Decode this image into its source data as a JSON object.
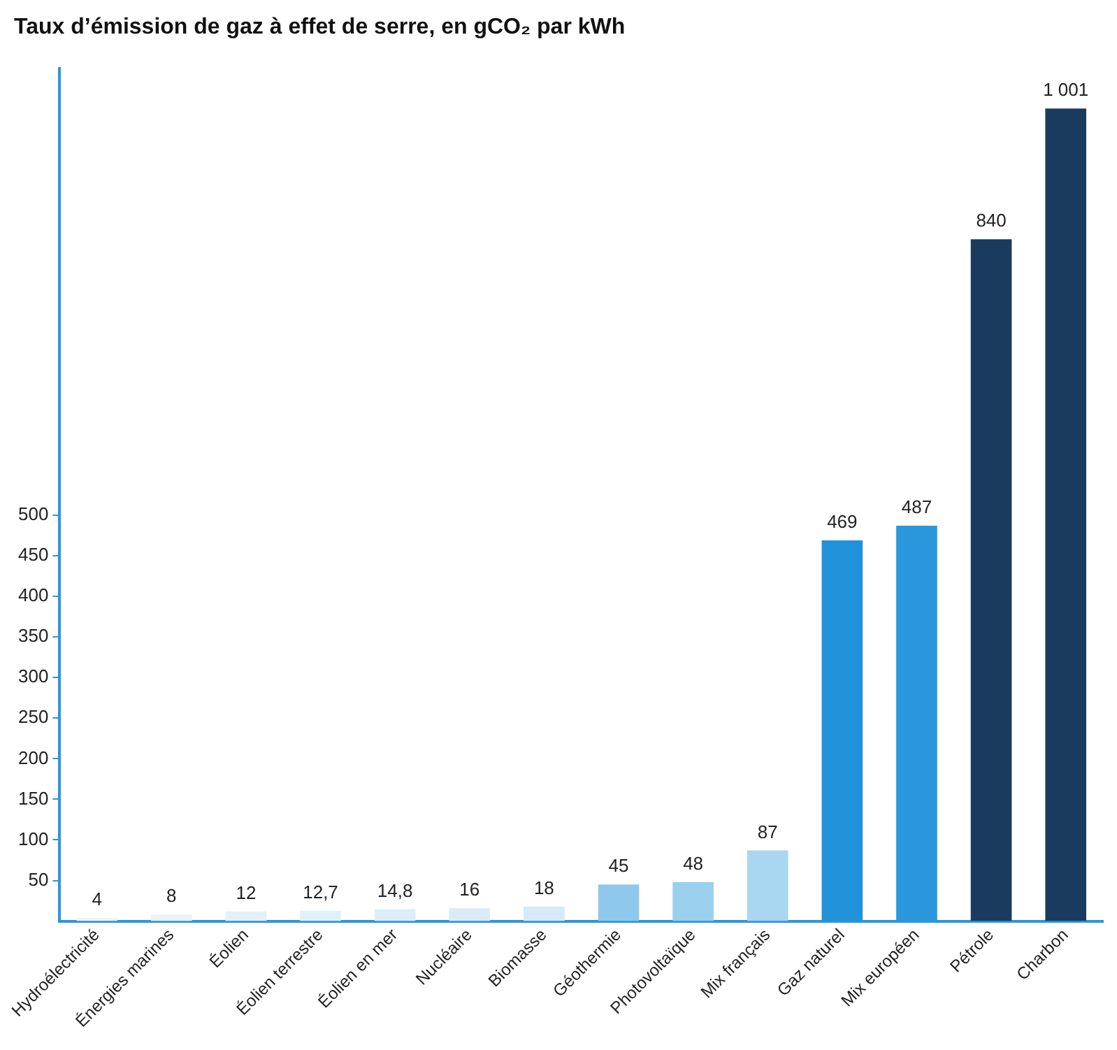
{
  "chart_data": {
    "type": "bar",
    "title": "Taux d’émission de gaz à effet de serre, en gCO₂ par kWh",
    "categories": [
      "Hydroélectricité",
      "Énergies marines",
      "Éolien",
      "Éolien terrestre",
      "Éolien en mer",
      "Nucléaire",
      "Biomasse",
      "Géothermie",
      "Photovoltaïque",
      "Mix français",
      "Gaz naturel",
      "Mix européen",
      "Pétrole",
      "Charbon"
    ],
    "values": [
      4,
      8,
      12,
      12.7,
      14.8,
      16,
      18,
      45,
      48,
      87,
      469,
      487,
      840,
      1001
    ],
    "colors": [
      "#eef6fc",
      "#eaf4fb",
      "#e4f1fa",
      "#e2f0fa",
      "#deeef9",
      "#dbecf8",
      "#d6eaf8",
      "#8ec9ec",
      "#9acfee",
      "#a9d6f0",
      "#1f92da",
      "#2a97dc",
      "#1b3b5e",
      "#1b3b5e"
    ],
    "value_labels": [
      "4",
      "8",
      "12",
      "12,7",
      "14,8",
      "16",
      "18",
      "45",
      "48",
      "87",
      "469",
      "487",
      "840",
      "1 001"
    ],
    "ylim": [
      0,
      1050
    ],
    "yticks": [
      50,
      100,
      150,
      200,
      250,
      300,
      350,
      400,
      450,
      500
    ],
    "grid": false
  }
}
